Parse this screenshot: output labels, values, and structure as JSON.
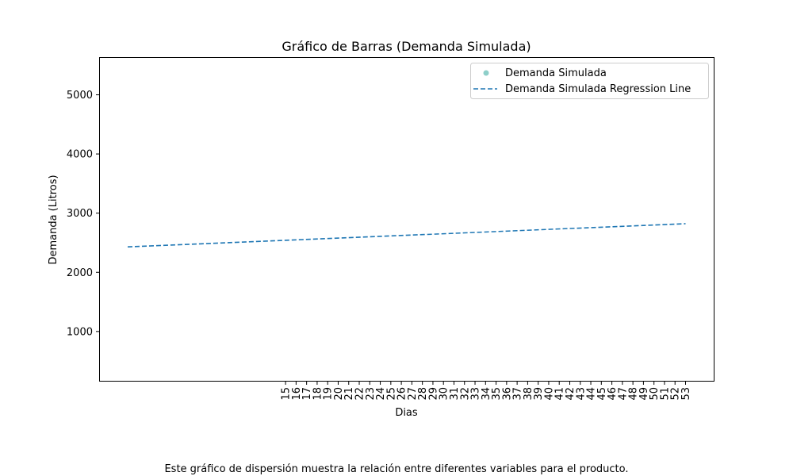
{
  "chart_data": {
    "type": "scatter",
    "title": "Gráfico de Barras (Demanda Simulada)",
    "xlabel": "Dias",
    "ylabel": "Demanda (Litros)",
    "x_ticks": [
      "15",
      "16",
      "17",
      "18",
      "19",
      "20",
      "21",
      "22",
      "23",
      "24",
      "25",
      "26",
      "27",
      "28",
      "29",
      "30",
      "31",
      "32",
      "33",
      "34",
      "35",
      "36",
      "37",
      "38",
      "39",
      "40",
      "41",
      "42",
      "43",
      "44",
      "45",
      "46",
      "47",
      "48",
      "49",
      "50",
      "51",
      "52",
      "53"
    ],
    "y_ticks": [
      1000,
      2000,
      3000,
      4000,
      5000
    ],
    "ylim": [
      160,
      5630
    ],
    "series": [
      {
        "name": "Demanda Simulada",
        "kind": "scatter",
        "marker_color": "#8ecfc9",
        "points": []
      },
      {
        "name": "Demanda Simulada Regression Line",
        "kind": "line",
        "line_style": "dashed",
        "color": "#1f77b4",
        "x": [
          0,
          53
        ],
        "y": [
          2430,
          2822
        ]
      }
    ],
    "legend_position": "top-right",
    "grid": false
  },
  "caption": "Este gráfico de dispersión muestra la relación entre diferentes variables para el producto."
}
